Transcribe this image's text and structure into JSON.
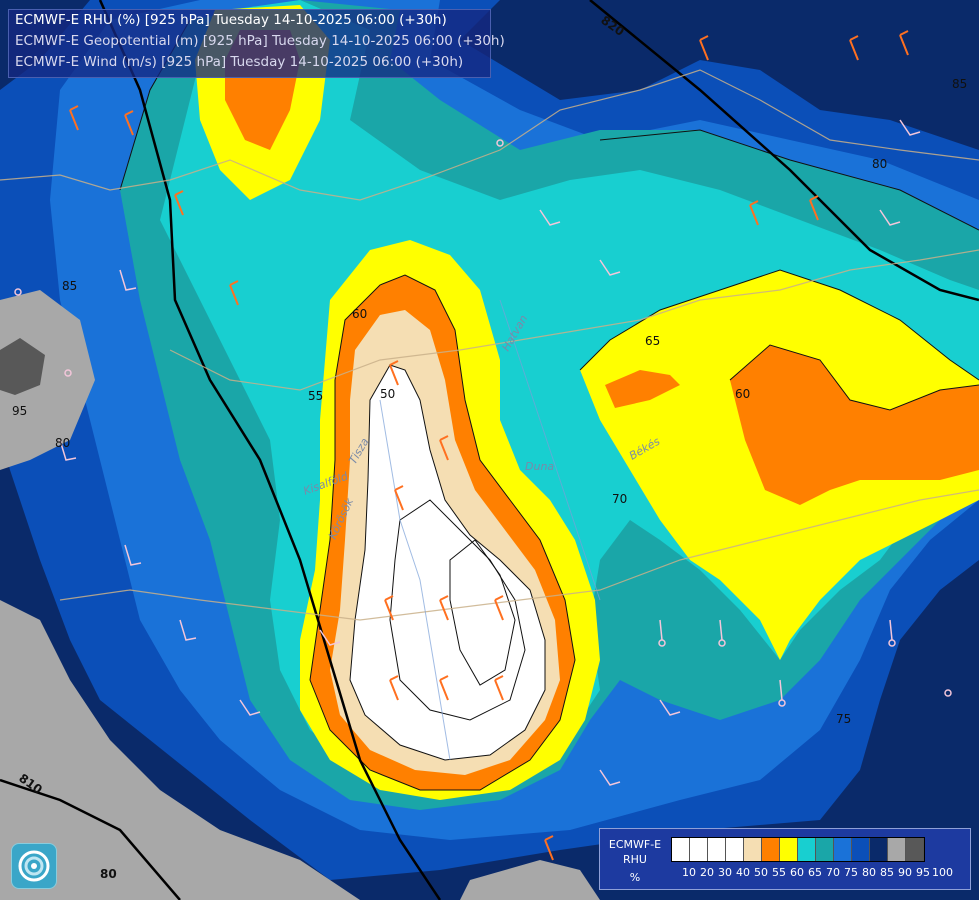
{
  "title": {
    "rhu": "ECMWF-E RHU (%) [925 hPa] Tuesday 14-10-2025 06:00 (+30h)",
    "geopotential": "ECMWF-E Geopotential (m) [925 hPa] Tuesday 14-10-2025 06:00 (+30h)",
    "wind": "ECMWF-E Wind (m/s) [925 hPa] Tuesday 14-10-2025 06:00 (+30h)"
  },
  "legend": {
    "name_line1": "ECMWF-E",
    "name_line2": "RHU",
    "unit": "%",
    "levels": [
      "10",
      "20",
      "30",
      "40",
      "50",
      "55",
      "60",
      "65",
      "70",
      "75",
      "80",
      "85",
      "90",
      "95",
      "100"
    ],
    "colors": [
      "#ffffff",
      "#ffffff",
      "#ffffff",
      "#ffffff",
      "#f5deb3",
      "#ff8000",
      "#ffff00",
      "#18cfd0",
      "#1aa6a8",
      "#1a72d8",
      "#0b4fb8",
      "#0a2a6a",
      "#a8a8a8",
      "#585858"
    ]
  },
  "contour_labels": {
    "rhu_50": "50",
    "rhu_55": "55",
    "rhu_60": "60",
    "rhu_65": "65",
    "rhu_60_east": "60",
    "rhu_70": "70",
    "rhu_75": "75",
    "rhu_80": "80",
    "rhu_85_nw": "85",
    "rhu_80_w": "80",
    "rhu_95": "95",
    "rhu_85_ne": "85",
    "geo_820": "820",
    "geo_810": "810",
    "geo_800": "80"
  },
  "places": {
    "hatvan": "Hatvan",
    "bekes": "Békés",
    "duna": "Duna",
    "tisza": "Tisza",
    "kisalfold": "Kisalföld",
    "korosok": "Körösök"
  }
}
